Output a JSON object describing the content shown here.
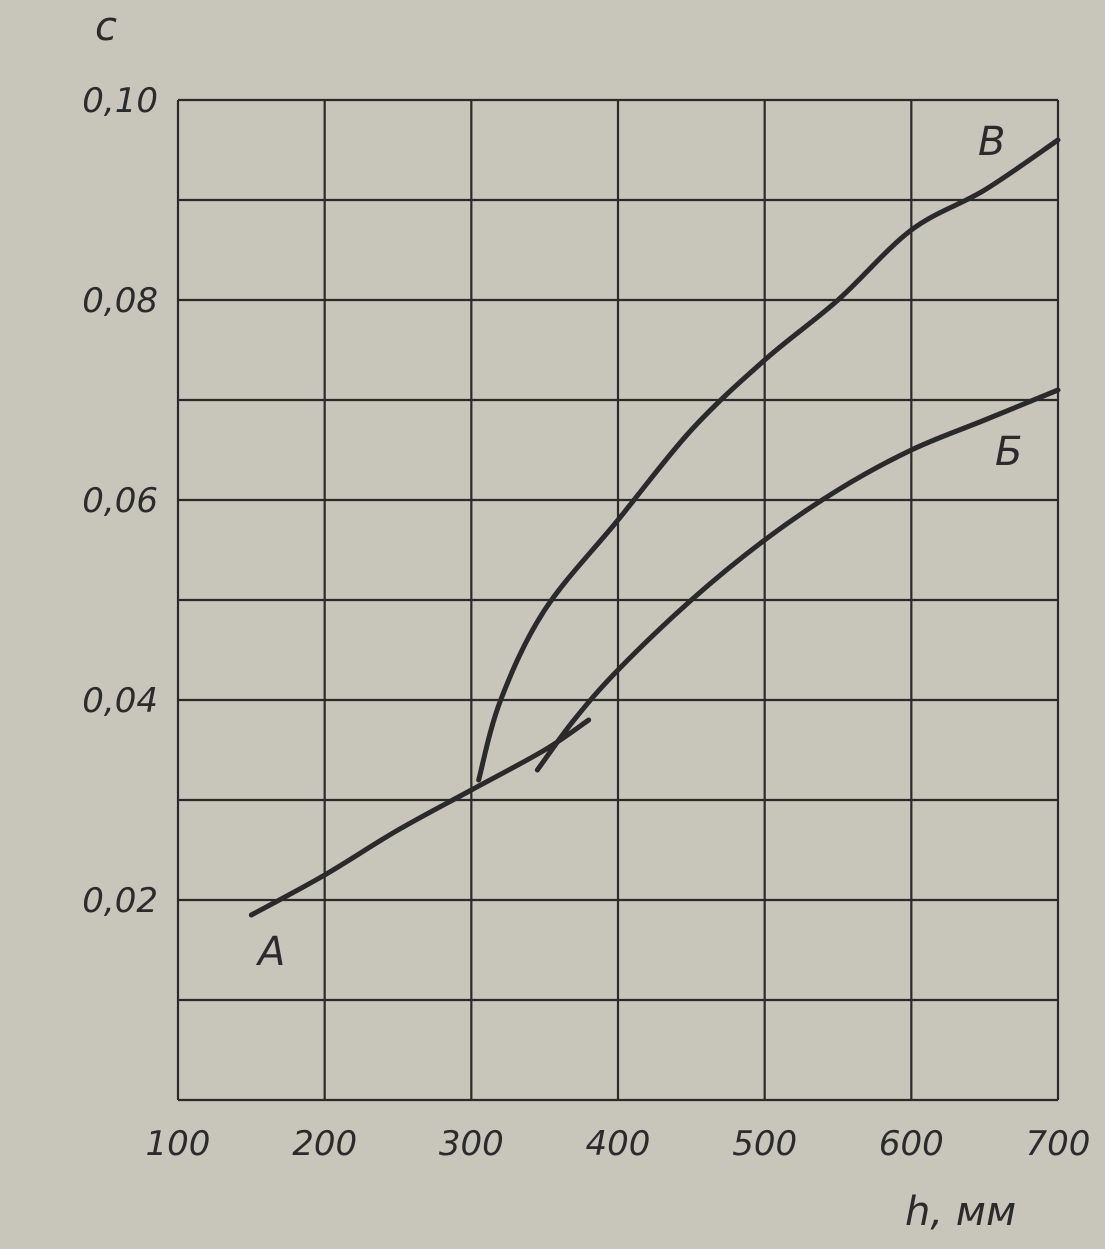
{
  "chart_data": {
    "type": "line",
    "title": "",
    "xlabel": "h, мм",
    "ylabel": "c",
    "xlim": [
      100,
      700
    ],
    "ylim": [
      0,
      0.1
    ],
    "grid": true,
    "x_ticks": [
      100,
      200,
      300,
      400,
      500,
      600,
      700
    ],
    "x_tick_labels": [
      "100",
      "200",
      "300",
      "400",
      "500",
      "600",
      "700"
    ],
    "y_ticks": [
      0.02,
      0.04,
      0.06,
      0.08,
      0.1
    ],
    "y_tick_labels": [
      "0,02",
      "0,04",
      "0,06",
      "0,08",
      "0,10"
    ],
    "line_color": "#2a2a2a",
    "background_color": "#c8c6bb",
    "series": [
      {
        "name": "А",
        "x": [
          150,
          200,
          250,
          300,
          350,
          380
        ],
        "y": [
          0.0185,
          0.0225,
          0.027,
          0.031,
          0.035,
          0.038
        ]
      },
      {
        "name": "Б",
        "x": [
          345,
          370,
          400,
          450,
          500,
          550,
          600,
          650,
          700
        ],
        "y": [
          0.033,
          0.038,
          0.043,
          0.05,
          0.056,
          0.061,
          0.065,
          0.068,
          0.071
        ]
      },
      {
        "name": "В",
        "x": [
          305,
          320,
          350,
          400,
          450,
          500,
          550,
          600,
          650,
          700
        ],
        "y": [
          0.032,
          0.04,
          0.049,
          0.058,
          0.067,
          0.074,
          0.08,
          0.087,
          0.091,
          0.096
        ]
      }
    ]
  }
}
